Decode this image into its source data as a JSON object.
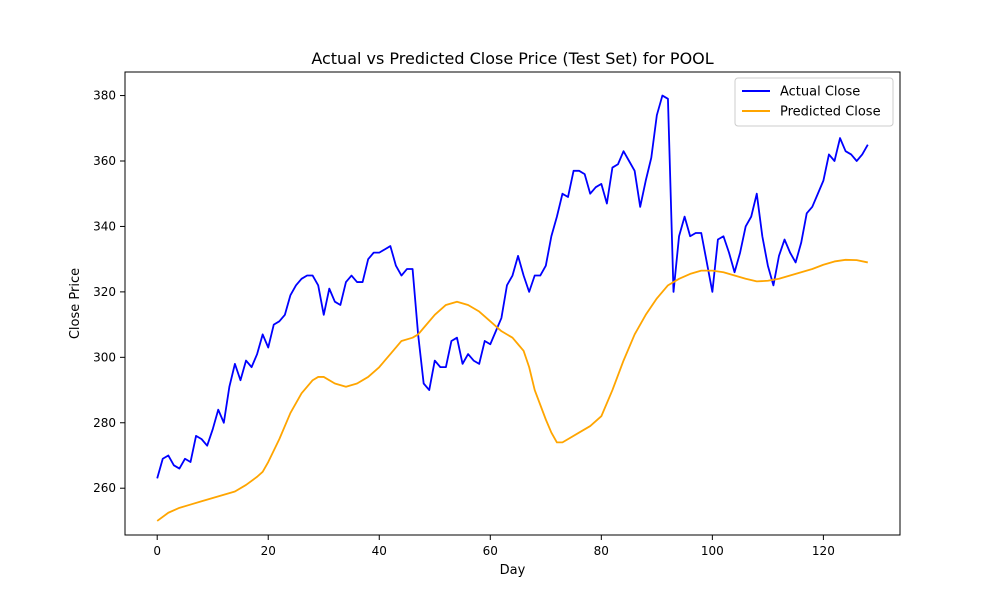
{
  "chart_data": {
    "type": "line",
    "title": "Actual vs Predicted Close Price (Test Set) for POOL",
    "xlabel": "Day",
    "ylabel": "Close Price",
    "xlim": [
      -5.8,
      133.8
    ],
    "ylim": [
      245.7,
      387.2
    ],
    "xticks": [
      0,
      20,
      40,
      60,
      80,
      100,
      120
    ],
    "yticks": [
      260,
      280,
      300,
      320,
      340,
      360,
      380
    ],
    "grid": false,
    "legend_position": "top-right",
    "series": [
      {
        "name": "Actual Close",
        "color": "#0000ff",
        "x": [
          0,
          1,
          2,
          3,
          4,
          5,
          6,
          7,
          8,
          9,
          10,
          11,
          12,
          13,
          14,
          15,
          16,
          17,
          18,
          19,
          20,
          21,
          22,
          23,
          24,
          25,
          26,
          27,
          28,
          29,
          30,
          31,
          32,
          33,
          34,
          35,
          36,
          37,
          38,
          39,
          40,
          41,
          42,
          43,
          44,
          45,
          46,
          47,
          48,
          49,
          50,
          51,
          52,
          53,
          54,
          55,
          56,
          57,
          58,
          59,
          60,
          61,
          62,
          63,
          64,
          65,
          66,
          67,
          68,
          69,
          70,
          71,
          72,
          73,
          74,
          75,
          76,
          77,
          78,
          79,
          80,
          81,
          82,
          83,
          84,
          85,
          86,
          87,
          88,
          89,
          90,
          91,
          92,
          93,
          94,
          95,
          96,
          97,
          98,
          99,
          100,
          101,
          102,
          103,
          104,
          105,
          106,
          107,
          108,
          109,
          110,
          111,
          112,
          113,
          114,
          115,
          116,
          117,
          118,
          119,
          120,
          121,
          122,
          123,
          124,
          125,
          126,
          127,
          128
        ],
        "values": [
          263,
          269,
          270,
          267,
          266,
          269,
          268,
          276,
          275,
          273,
          278,
          284,
          280,
          291,
          298,
          293,
          299,
          297,
          301,
          307,
          303,
          310,
          311,
          313,
          319,
          322,
          324,
          325,
          325,
          322,
          313,
          321,
          317,
          316,
          323,
          325,
          323,
          323,
          330,
          332,
          332,
          333,
          334,
          328,
          325,
          327,
          327,
          307,
          292,
          290,
          299,
          297,
          297,
          305,
          306,
          298,
          301,
          299,
          298,
          305,
          304,
          308,
          312,
          322,
          325,
          331,
          325,
          320,
          325,
          325,
          328,
          337,
          343,
          350,
          349,
          357,
          357,
          356,
          350,
          352,
          353,
          347,
          358,
          359,
          363,
          360,
          357,
          346,
          354,
          361,
          374,
          380,
          379,
          320,
          337,
          343,
          337,
          338,
          338,
          329,
          320,
          336,
          337,
          332,
          326,
          332,
          340,
          343,
          350,
          337,
          328,
          322,
          331,
          336,
          332,
          329,
          335,
          344,
          346,
          350,
          354,
          362,
          360,
          367,
          363,
          362,
          360,
          362,
          365
        ]
      },
      {
        "name": "Predicted Close",
        "color": "#ffa500",
        "x": [
          0,
          2,
          4,
          6,
          8,
          10,
          12,
          14,
          16,
          18,
          19,
          20,
          22,
          24,
          26,
          28,
          29,
          30,
          32,
          34,
          36,
          38,
          40,
          41,
          42,
          44,
          46,
          47,
          48,
          50,
          52,
          54,
          56,
          58,
          60,
          62,
          64,
          65,
          66,
          67,
          68,
          70,
          71,
          72,
          73,
          74,
          76,
          78,
          80,
          82,
          84,
          86,
          88,
          90,
          92,
          94,
          96,
          98,
          100,
          102,
          104,
          106,
          108,
          110,
          112,
          114,
          116,
          118,
          120,
          122,
          124,
          126,
          128
        ],
        "values": [
          250,
          252.5,
          254,
          255,
          256,
          257,
          258,
          259,
          261,
          263.5,
          265,
          268,
          275,
          283,
          289,
          293,
          294,
          294,
          292,
          291,
          292,
          294,
          297,
          299,
          301,
          305,
          306,
          307,
          309,
          313,
          316,
          317,
          316,
          314,
          311,
          308,
          306,
          304,
          302,
          297,
          290,
          281,
          277,
          274,
          274,
          275,
          277,
          279,
          282,
          290,
          299,
          307,
          313,
          318,
          322,
          324,
          325.5,
          326.5,
          326.5,
          326,
          325,
          324,
          323.2,
          323.4,
          324,
          325,
          326,
          327,
          328.3,
          329.3,
          329.8,
          329.7,
          329
        ]
      }
    ]
  }
}
